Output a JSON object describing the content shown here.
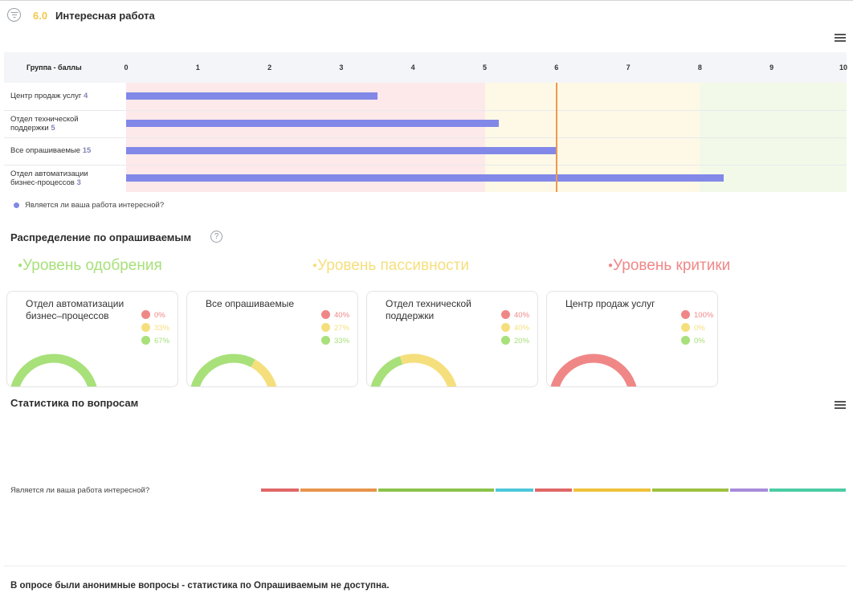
{
  "header": {
    "score": "6.0",
    "title": "Интересная работа"
  },
  "colors": {
    "bar": "#8288e8",
    "target_line": "#f0974c",
    "zone_red": "#fde8ea",
    "zone_yellow": "#fdf9e6",
    "zone_green": "#f2f9e8",
    "approval": "#a8e07a",
    "passive": "#f5df7d",
    "critic": "#f08787"
  },
  "chart_data": {
    "type": "bar",
    "orientation": "horizontal",
    "header_label": "Группа - баллы",
    "x_ticks": [
      "0",
      "1",
      "2",
      "3",
      "4",
      "5",
      "6",
      "7",
      "8",
      "9",
      "10"
    ],
    "xlim": [
      0,
      10
    ],
    "target_value": 6.0,
    "zones": [
      {
        "from": 0,
        "to": 5,
        "color": "#fde8ea"
      },
      {
        "from": 5,
        "to": 8,
        "color": "#fdf9e6"
      },
      {
        "from": 8,
        "to": 10,
        "color": "#f2f9e8"
      }
    ],
    "rows": [
      {
        "label": "Центр продаж услуг",
        "count": "4",
        "value": 3.5
      },
      {
        "label": "Отдел технической поддержки",
        "count": "5",
        "value": 5.2
      },
      {
        "label": "Все опрашиваемые",
        "count": "15",
        "value": 6.0
      },
      {
        "label": "Отдел автоматизации бизнес-процессов",
        "count": "3",
        "value": 8.33
      }
    ],
    "legend": "Является ли ваша работа интересной?"
  },
  "distribution": {
    "title": "Распределение по опрашиваемым",
    "help_icon": "?",
    "levels": [
      {
        "label": "Уровень одобрения",
        "color": "#a8e07a"
      },
      {
        "label": "Уровень пассивности",
        "color": "#f5df7d"
      },
      {
        "label": "Уровень критики",
        "color": "#f08787"
      }
    ],
    "cards": [
      {
        "title": "Отдел автоматизации бизнес–процессов",
        "critic": "0%",
        "passive": "33%",
        "approval": "67%",
        "critic_v": 0,
        "passive_v": 33,
        "approval_v": 67
      },
      {
        "title": "Все опрашиваемые",
        "critic": "40%",
        "passive": "27%",
        "approval": "33%",
        "critic_v": 40,
        "passive_v": 27,
        "approval_v": 33
      },
      {
        "title": "Отдел технической поддержки",
        "critic": "40%",
        "passive": "40%",
        "approval": "20%",
        "critic_v": 40,
        "passive_v": 40,
        "approval_v": 20
      },
      {
        "title": "Центр продаж услуг",
        "critic": "100%",
        "passive": "0%",
        "approval": "0%",
        "critic_v": 100,
        "passive_v": 0,
        "approval_v": 0
      }
    ]
  },
  "stats": {
    "title": "Статистика по вопросам",
    "question": "Является ли ваша работа интересной?",
    "segments": [
      {
        "color": "#e06666",
        "share": 1
      },
      {
        "color": "#e8934a",
        "share": 2
      },
      {
        "color": "#8bc34a",
        "share": 3
      },
      {
        "color": "#4dc7d9",
        "share": 1
      },
      {
        "color": "#e06666",
        "share": 1
      },
      {
        "color": "#efc23a",
        "share": 2
      },
      {
        "color": "#9ec13f",
        "share": 2
      },
      {
        "color": "#a88bdb",
        "share": 1
      },
      {
        "color": "#4ccca3",
        "share": 2
      }
    ]
  },
  "footer_note": "В опросе были анонимные вопросы - статистика по Опрашиваемым не доступна."
}
